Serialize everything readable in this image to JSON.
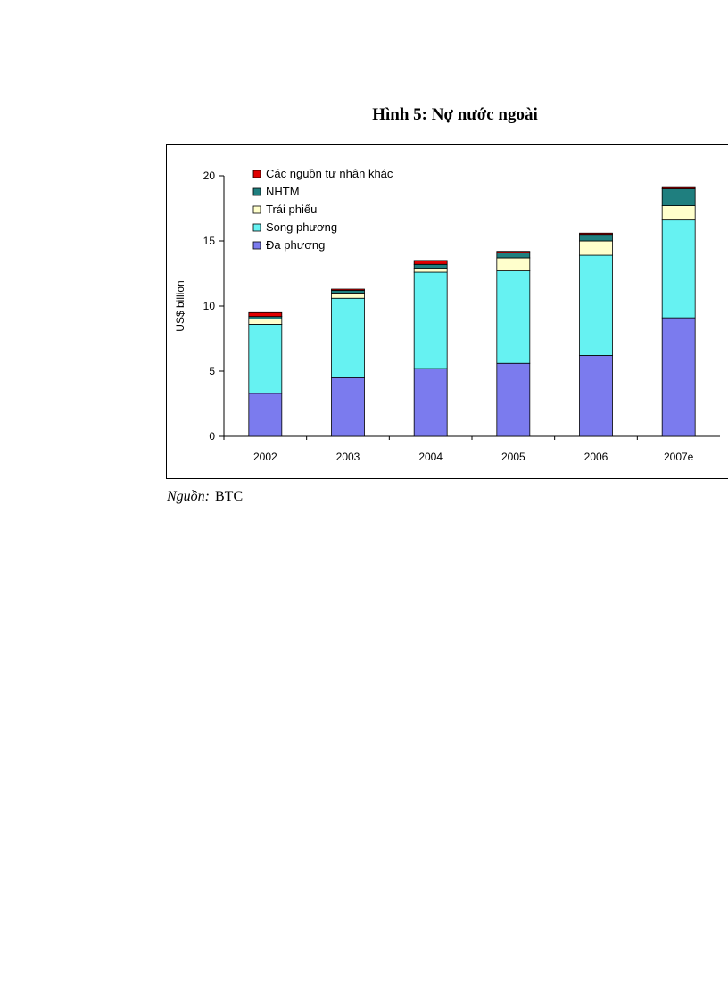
{
  "figure_title": "Hình 5: Nợ nước ngoài",
  "source": {
    "label": "Nguồn:",
    "value": "BTC"
  },
  "chart_data": {
    "type": "bar",
    "stacked": true,
    "title": "",
    "xlabel": "",
    "ylabel": "US$ billion",
    "ylim": [
      0,
      20
    ],
    "yticks": [
      0,
      5,
      10,
      15,
      20
    ],
    "categories": [
      "2002",
      "2003",
      "2004",
      "2005",
      "2006",
      "2007e"
    ],
    "legend_position": "top-left",
    "series": [
      {
        "name": "Đa phương",
        "color": "#7B7BEE",
        "values": [
          3.3,
          4.5,
          5.2,
          5.6,
          6.2,
          9.1
        ]
      },
      {
        "name": "Song phương",
        "color": "#66F2F2",
        "values": [
          5.3,
          6.1,
          7.4,
          7.1,
          7.7,
          7.5
        ]
      },
      {
        "name": "Trái phiếu",
        "color": "#FFFFCC",
        "values": [
          0.4,
          0.4,
          0.3,
          1.0,
          1.1,
          1.1
        ]
      },
      {
        "name": "NHTM",
        "color": "#1F7F7F",
        "values": [
          0.2,
          0.2,
          0.3,
          0.4,
          0.5,
          1.3
        ]
      },
      {
        "name": "Các nguồn tư nhân khác",
        "color": "#E00000",
        "values": [
          0.3,
          0.1,
          0.3,
          0.1,
          0.1,
          0.1
        ]
      }
    ]
  }
}
